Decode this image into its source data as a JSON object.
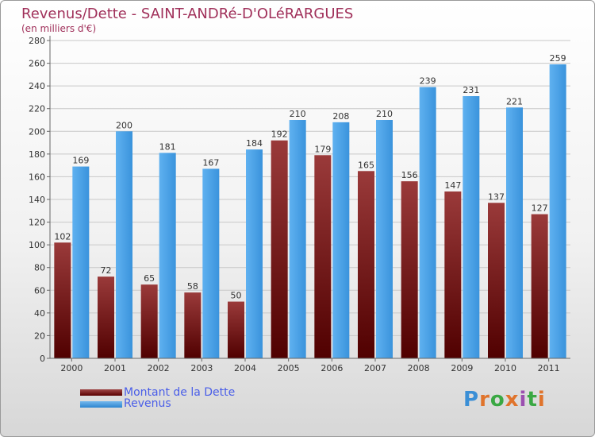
{
  "header": {
    "title": "Revenus/Dette - SAINT-ANDRé-D'OLéRARGUES",
    "subtitle": "(en milliers d'€)"
  },
  "legend": {
    "debt_label": "Montant de la Dette",
    "revenue_label": "Revenus"
  },
  "logo": {
    "text": "Proxiti",
    "letter_colors": [
      "#3b8fd6",
      "#e0742c",
      "#3aa843",
      "#e0742c",
      "#9b4fb0",
      "#3aa843",
      "#e0742c"
    ]
  },
  "colors": {
    "debt": "#7a1e1e",
    "revenue": "#4aa3e8",
    "title": "#a0305a",
    "legend_text": "#4a5ee8"
  },
  "chart_data": {
    "type": "bar",
    "categories": [
      "2000",
      "2001",
      "2002",
      "2003",
      "2004",
      "2005",
      "2006",
      "2007",
      "2008",
      "2009",
      "2010",
      "2011"
    ],
    "series": [
      {
        "name": "Montant de la Dette",
        "values": [
          102,
          72,
          65,
          58,
          50,
          192,
          179,
          165,
          156,
          147,
          137,
          127
        ]
      },
      {
        "name": "Revenus",
        "values": [
          169,
          200,
          181,
          167,
          184,
          210,
          208,
          210,
          239,
          231,
          221,
          259
        ]
      }
    ],
    "title": "Revenus/Dette - SAINT-ANDRé-D'OLéRARGUES",
    "ylabel": "",
    "xlabel": "",
    "ylim": [
      0,
      280
    ],
    "ytick_step": 20,
    "grid": true,
    "legend_position": "bottom-left"
  }
}
